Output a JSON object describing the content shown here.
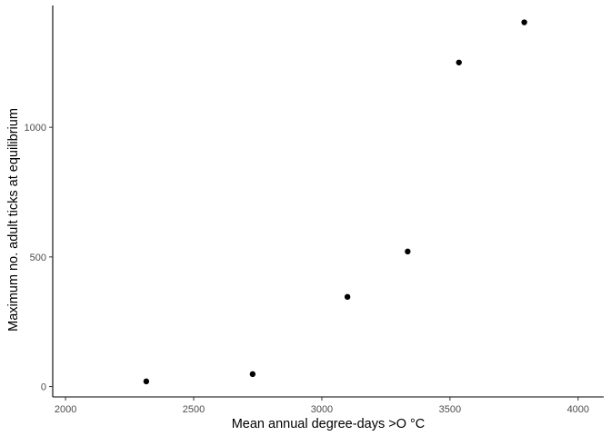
{
  "chart_data": {
    "type": "scatter",
    "title": "",
    "xlabel": "Mean annual degree-days >O °C",
    "ylabel": "Maximum no. adult ticks at equilibrium",
    "xlim": [
      1950,
      4100
    ],
    "ylim": [
      -40,
      1470
    ],
    "x_ticks": [
      2000,
      2500,
      3000,
      3500,
      4000
    ],
    "y_ticks": [
      0,
      500,
      1000
    ],
    "grid": false,
    "points": [
      {
        "x": 2315,
        "y": 20
      },
      {
        "x": 2730,
        "y": 48
      },
      {
        "x": 3100,
        "y": 346
      },
      {
        "x": 3335,
        "y": 521
      },
      {
        "x": 3535,
        "y": 1250
      },
      {
        "x": 3790,
        "y": 1405
      }
    ],
    "colors": {
      "points": "#000000",
      "axis": "#000000",
      "tick_labels": "#4d4d4d"
    }
  }
}
